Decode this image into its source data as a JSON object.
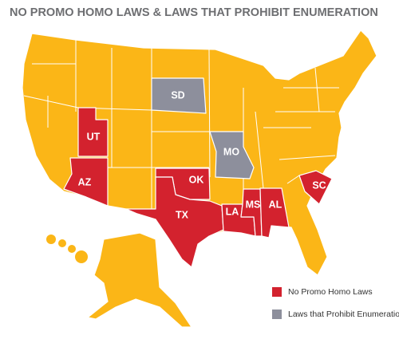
{
  "title": "NO PROMO HOMO LAWS & LAWS THAT PROHIBIT ENUMERATION",
  "base_color": "#fbb617",
  "legend": [
    {
      "label": "No Promo Homo Laws",
      "color": "#d3222e",
      "states": [
        "UT",
        "AZ",
        "OK",
        "TX",
        "LA",
        "MS",
        "AL",
        "SC"
      ]
    },
    {
      "label": "Laws that Prohibit Enumeration",
      "color": "#8d8f9c",
      "states": [
        "SD",
        "MO"
      ]
    }
  ]
}
